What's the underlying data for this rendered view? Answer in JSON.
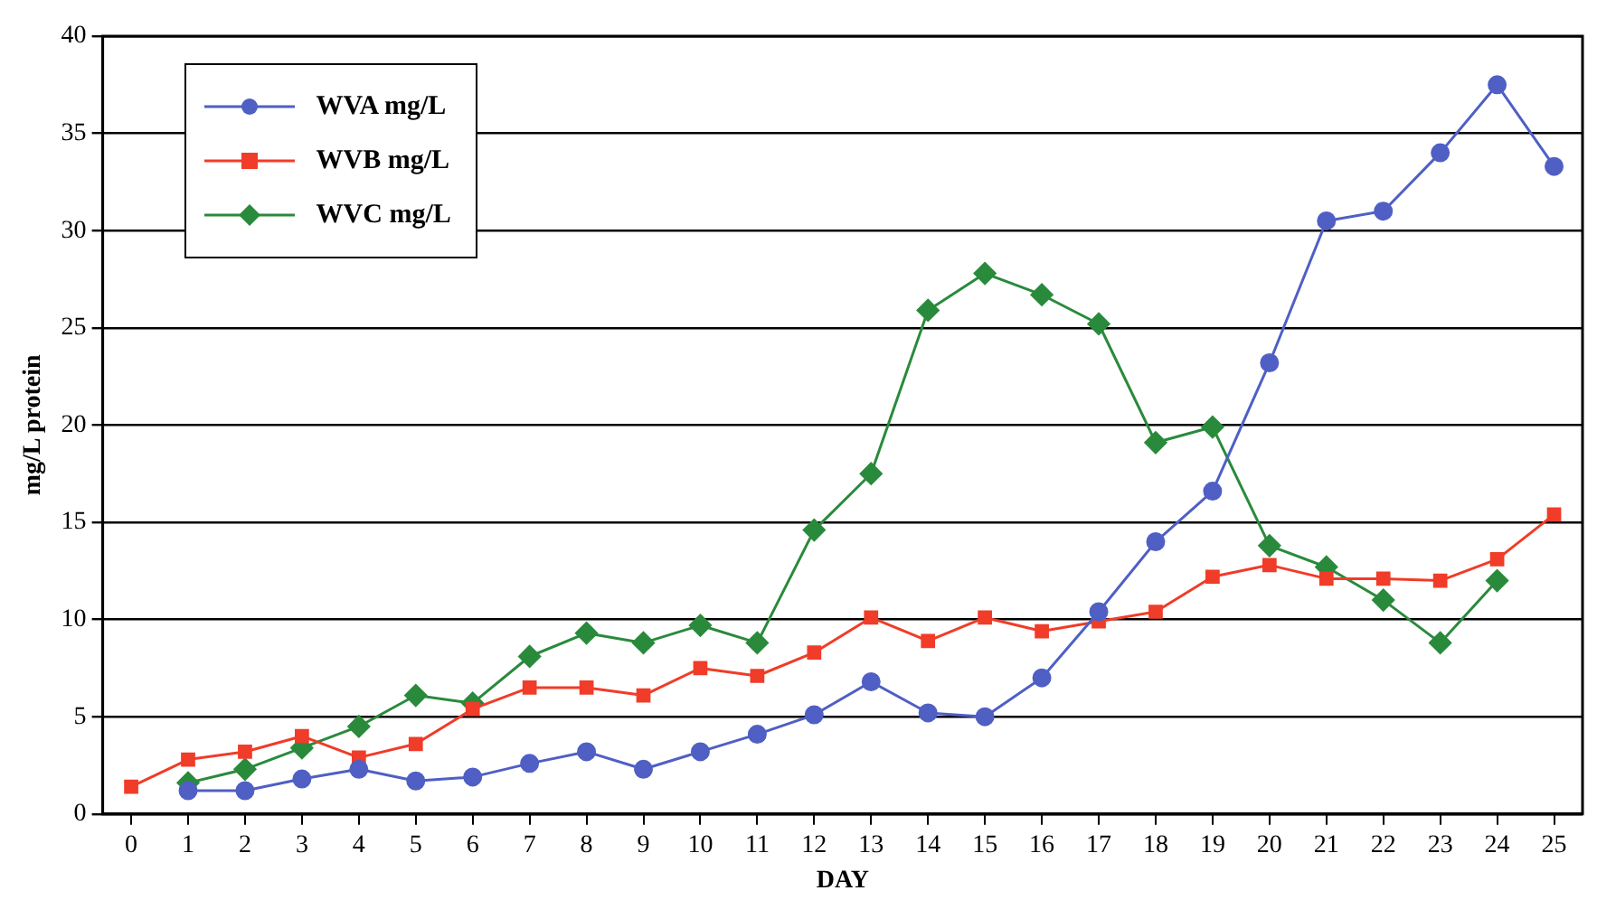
{
  "chart_data": {
    "type": "line",
    "xlabel": "DAY",
    "ylabel": "mg/L protein",
    "xlim": [
      -0.5,
      25.5
    ],
    "xticks": [
      0,
      1,
      2,
      3,
      4,
      5,
      6,
      7,
      8,
      9,
      10,
      11,
      12,
      13,
      14,
      15,
      16,
      17,
      18,
      19,
      20,
      21,
      22,
      23,
      24,
      25
    ],
    "ylim": [
      0,
      40
    ],
    "yticks": [
      0,
      5,
      10,
      15,
      20,
      25,
      30,
      35,
      40
    ],
    "grid": "y",
    "legend": "top left",
    "line_style": "solid",
    "series": [
      {
        "name": "WVA mg/L",
        "color": "#4f5fc4",
        "marker": "circle",
        "x": [
          1,
          2,
          3,
          4,
          5,
          6,
          7,
          8,
          9,
          10,
          11,
          12,
          13,
          14,
          15,
          16,
          17,
          18,
          19,
          20,
          21,
          22,
          23,
          24,
          25
        ],
        "values": [
          1.2,
          1.2,
          1.8,
          2.3,
          1.7,
          1.9,
          2.6,
          3.2,
          2.3,
          3.2,
          4.1,
          5.1,
          6.8,
          5.2,
          5.0,
          7.0,
          10.4,
          14.0,
          16.6,
          23.2,
          30.5,
          31.0,
          34.0,
          37.5,
          33.3
        ]
      },
      {
        "name": "WVB mg/L",
        "color": "#f03c28",
        "marker": "square",
        "x": [
          0,
          1,
          2,
          3,
          4,
          5,
          6,
          7,
          8,
          9,
          10,
          11,
          12,
          13,
          14,
          15,
          16,
          17,
          18,
          19,
          20,
          21,
          22,
          23,
          24,
          25
        ],
        "values": [
          1.4,
          2.8,
          3.2,
          4.0,
          2.9,
          3.6,
          5.4,
          6.5,
          6.5,
          6.1,
          7.5,
          7.1,
          8.3,
          10.1,
          8.9,
          10.1,
          9.4,
          9.9,
          10.4,
          12.2,
          12.8,
          12.1,
          12.1,
          12.0,
          13.1,
          15.4
        ]
      },
      {
        "name": "WVC mg/L",
        "color": "#2a8a3c",
        "marker": "diamond",
        "x": [
          1,
          2,
          3,
          4,
          5,
          6,
          7,
          8,
          9,
          10,
          11,
          12,
          13,
          14,
          15,
          16,
          17,
          18,
          19,
          20,
          21,
          22,
          23,
          24
        ],
        "values": [
          1.6,
          2.3,
          3.4,
          4.5,
          6.1,
          5.7,
          8.1,
          9.3,
          8.8,
          9.7,
          8.8,
          14.6,
          17.5,
          25.9,
          27.8,
          26.7,
          25.2,
          19.1,
          19.9,
          13.8,
          12.7,
          11.0,
          8.8,
          12.0
        ]
      }
    ]
  }
}
